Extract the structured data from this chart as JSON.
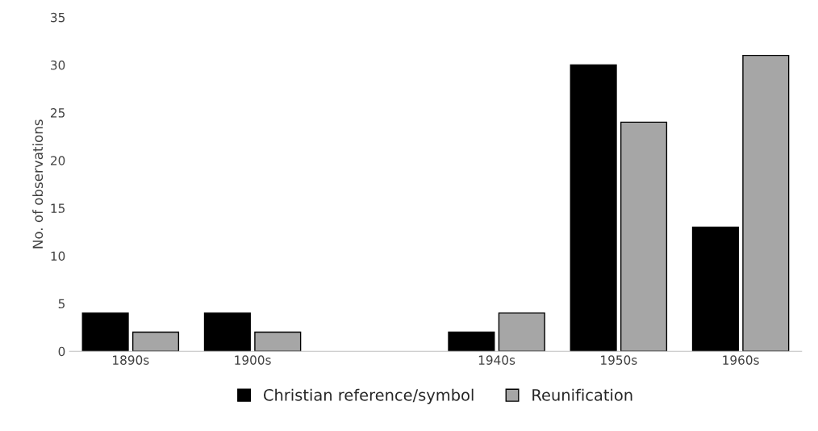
{
  "chart_data": {
    "type": "bar",
    "ylabel": "No. of observations",
    "categories": [
      "1890s",
      "1900s",
      null,
      "1940s",
      "1950s",
      "1960s"
    ],
    "series": [
      {
        "name": "Christian reference/symbol",
        "color": "#000000",
        "values": [
          4,
          4,
          null,
          2,
          30,
          13
        ]
      },
      {
        "name": "Reunification",
        "color": "#a6a6a6",
        "values": [
          2,
          2,
          null,
          4,
          24,
          31
        ]
      }
    ],
    "ylim": [
      0,
      35
    ],
    "yticks": [
      0,
      5,
      10,
      15,
      20,
      25,
      30,
      35
    ],
    "grid": false,
    "legend": "bottom"
  }
}
